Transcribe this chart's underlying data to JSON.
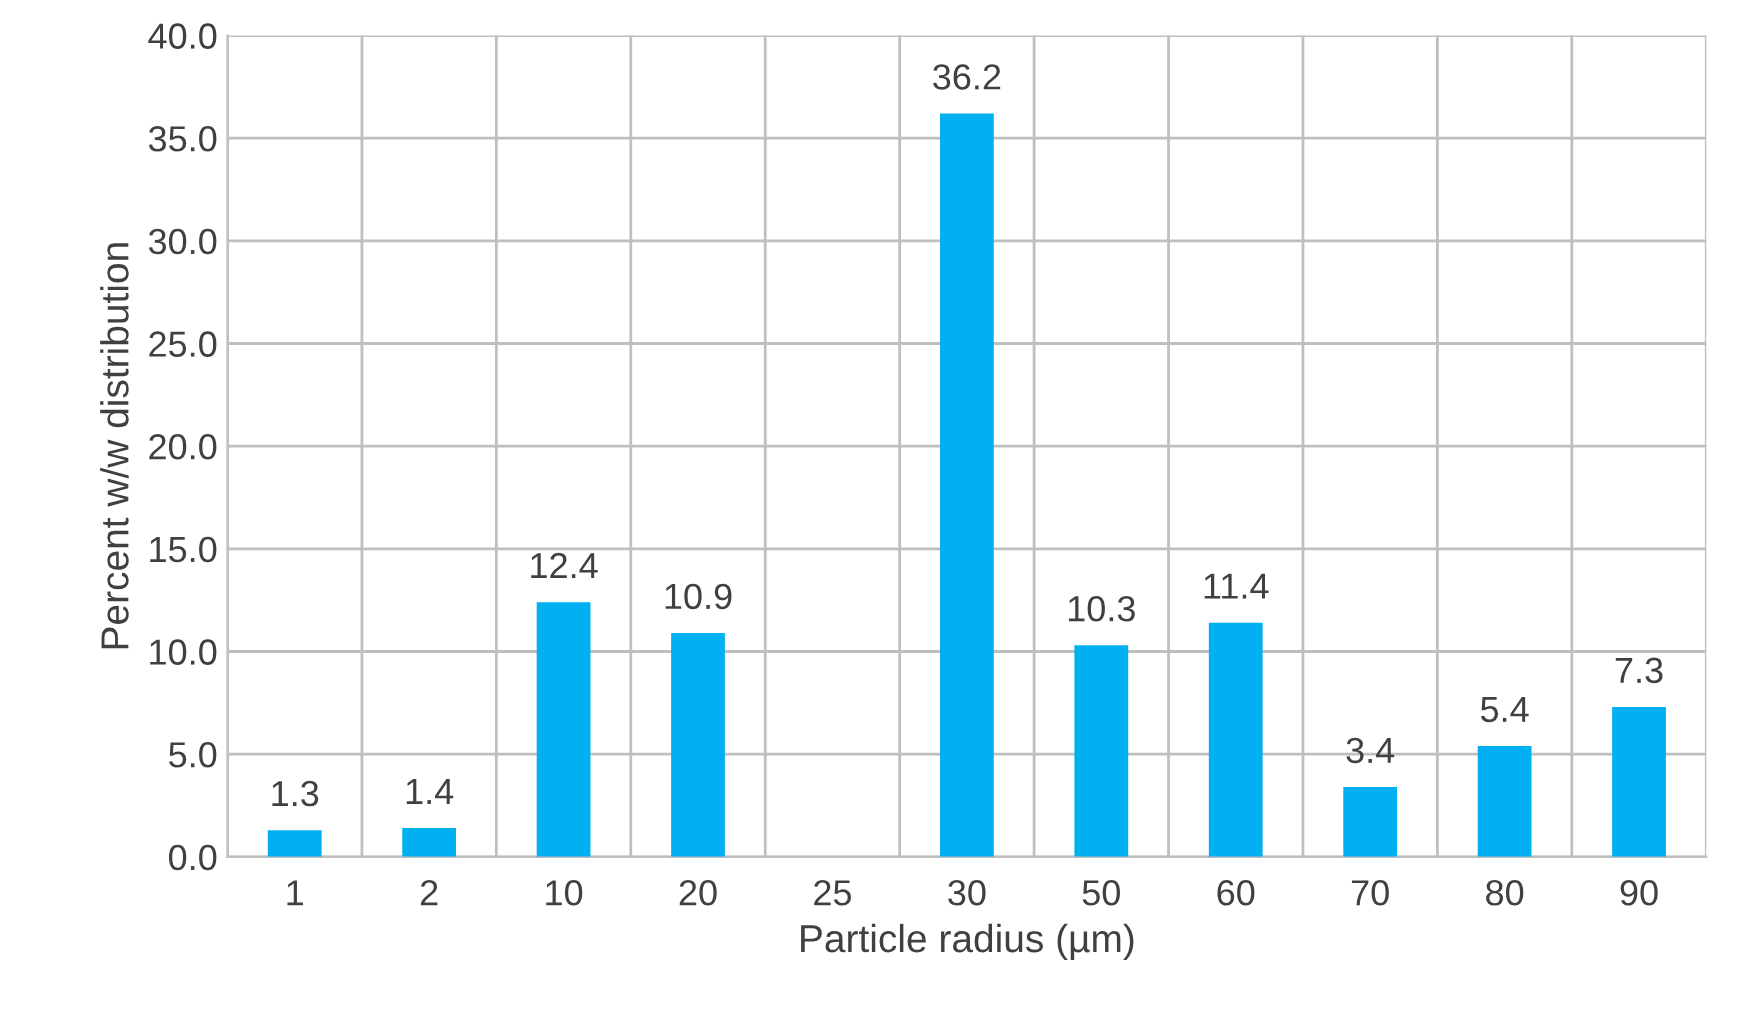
{
  "chart_data": {
    "type": "bar",
    "xlabel": "Particle radius (µm)",
    "ylabel": "Percent w/w distribution",
    "categories": [
      "1",
      "2",
      "10",
      "20",
      "25",
      "30",
      "50",
      "60",
      "70",
      "80",
      "90"
    ],
    "values": [
      1.3,
      1.4,
      12.4,
      10.9,
      null,
      36.2,
      10.3,
      11.4,
      3.4,
      5.4,
      7.3
    ],
    "color": "#00b0f0",
    "data_labels": true,
    "grid": true,
    "legend": false,
    "ylim": [
      0,
      40
    ],
    "yticks": [
      {
        "value": 0,
        "label": "0.0"
      },
      {
        "value": 5,
        "label": "5.0"
      },
      {
        "value": 10,
        "label": "10.0"
      },
      {
        "value": 15,
        "label": "15.0"
      },
      {
        "value": 20,
        "label": "20.0"
      },
      {
        "value": 25,
        "label": "25.0"
      },
      {
        "value": 30,
        "label": "30.0"
      },
      {
        "value": 35,
        "label": "35.0"
      },
      {
        "value": 40,
        "label": "40.0"
      }
    ]
  }
}
